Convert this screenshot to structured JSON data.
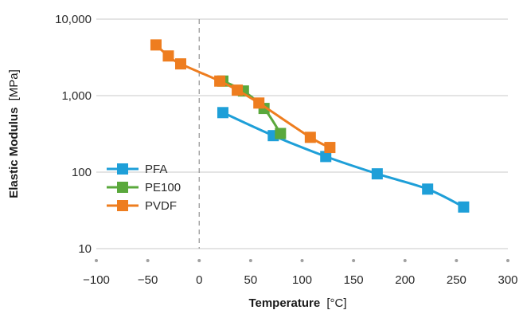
{
  "chart_data": {
    "type": "line",
    "xlabel_main": "Temperature",
    "xlabel_unit": "[°C]",
    "ylabel_main": "Elastic Modulus",
    "ylabel_unit": "[MPa]",
    "xlim": [
      -100,
      300
    ],
    "ylim": [
      10,
      10000
    ],
    "y_scale": "log",
    "x_ticks": [
      -100,
      -50,
      0,
      50,
      100,
      150,
      200,
      250,
      300
    ],
    "x_tick_labels": [
      "−100",
      "−50",
      "0",
      "50",
      "100",
      "150",
      "200",
      "250",
      "300"
    ],
    "y_ticks": [
      10,
      100,
      1000,
      10000
    ],
    "y_tick_labels": [
      "10",
      "100",
      "1,000",
      "10,000"
    ],
    "grid": "horizontal",
    "reference_line_x": 0,
    "legend_position": "left-center",
    "series": [
      {
        "name": "PFA",
        "color": "#1e9fd8",
        "points": [
          [
            23,
            600
          ],
          [
            72,
            300
          ],
          [
            123,
            160
          ],
          [
            173,
            95
          ],
          [
            222,
            60
          ],
          [
            257,
            35
          ]
        ]
      },
      {
        "name": "PE100",
        "color": "#5aa83c",
        "points": [
          [
            23,
            1550
          ],
          [
            43,
            1150
          ],
          [
            63,
            680
          ],
          [
            79,
            320
          ]
        ]
      },
      {
        "name": "PVDF",
        "color": "#ee7d1f",
        "points": [
          [
            -42,
            4600
          ],
          [
            -30,
            3300
          ],
          [
            -18,
            2600
          ],
          [
            20,
            1550
          ],
          [
            37,
            1180
          ],
          [
            58,
            800
          ],
          [
            108,
            285
          ],
          [
            127,
            210
          ]
        ]
      }
    ]
  }
}
